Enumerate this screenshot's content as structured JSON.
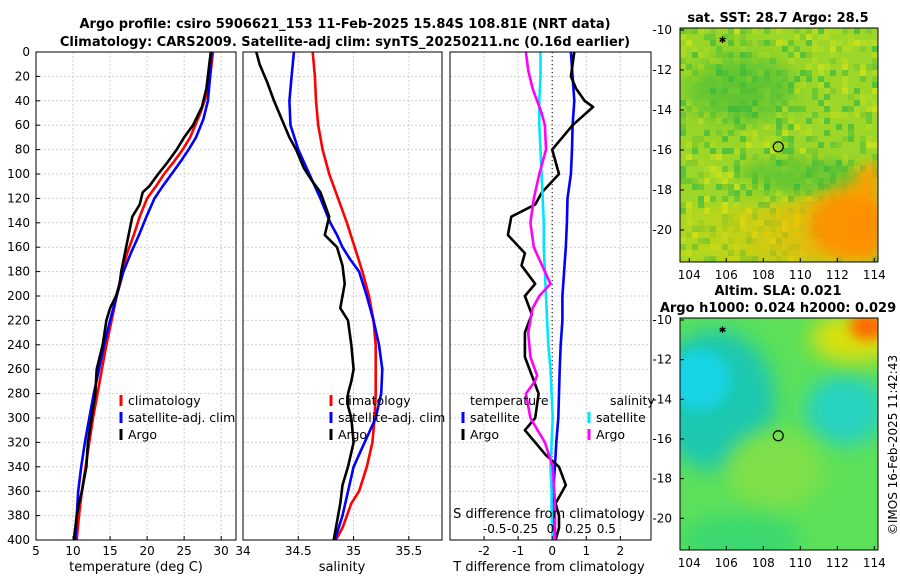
{
  "title": {
    "line1": "Argo profile: csiro 5906621_153 11-Feb-2025 15.84S 108.81E (NRT data)",
    "line2": "Climatology: CARS2009. Satellite-adj clim: synTS_20250211.nc (0.16d earlier)"
  },
  "colors": {
    "climatology": "#ff0000",
    "satellite": "#0000ff",
    "argo": "#000000",
    "s_satellite": "#00e5ff",
    "s_argo": "#ff00ff",
    "grid": "#cccccc"
  },
  "chart_data": [
    {
      "id": "temperature",
      "type": "line",
      "xlabel": "temperature (deg C)",
      "ylabel": "",
      "xlim": [
        5,
        32
      ],
      "ylim": [
        400,
        0
      ],
      "xticks": [
        5,
        10,
        15,
        20,
        25,
        30
      ],
      "yticks": [
        0,
        20,
        40,
        60,
        80,
        100,
        120,
        140,
        160,
        180,
        200,
        220,
        240,
        260,
        280,
        300,
        320,
        340,
        360,
        380,
        400
      ],
      "legend": [
        "climatology",
        "satellite-adj. clim",
        "Argo"
      ],
      "series": [
        {
          "name": "climatology",
          "color": "#ff0000",
          "x": [
            28.9,
            28.7,
            28.3,
            27.2,
            25.8,
            24.8,
            23.6,
            22.3,
            21.2,
            20.0,
            19.0,
            18.2,
            17.3,
            16.6,
            15.9,
            15.2,
            14.5,
            13.9,
            13.3,
            12.7,
            12.2,
            11.7,
            11.2,
            10.8,
            10.5
          ],
          "y": [
            0,
            10,
            30,
            50,
            70,
            80,
            90,
            100,
            110,
            120,
            135,
            150,
            165,
            180,
            200,
            220,
            240,
            260,
            280,
            300,
            320,
            340,
            360,
            380,
            400
          ]
        },
        {
          "name": "satellite-adj. clim",
          "color": "#0000ff",
          "x": [
            28.7,
            28.6,
            28.5,
            28.2,
            27.6,
            26.6,
            25.6,
            24.5,
            23.3,
            22.1,
            21.0,
            19.9,
            18.9,
            17.8,
            16.8,
            15.9,
            15.0,
            14.2,
            13.5,
            12.8,
            12.2,
            11.6,
            11.1,
            10.7,
            10.3
          ],
          "y": [
            0,
            10,
            20,
            40,
            55,
            70,
            80,
            90,
            100,
            110,
            120,
            135,
            150,
            165,
            180,
            200,
            220,
            240,
            260,
            280,
            300,
            320,
            340,
            360,
            400
          ]
        },
        {
          "name": "Argo",
          "color": "#000000",
          "x": [
            28.6,
            28.4,
            28.0,
            27.4,
            26.2,
            25.0,
            24.0,
            22.8,
            21.5,
            20.3,
            19.4,
            19.0,
            18.0,
            17.5,
            17.0,
            16.5,
            16.3,
            15.8,
            15.0,
            14.5,
            14.0,
            13.2,
            13.0,
            12.5,
            12.0,
            11.8,
            11.5,
            11.2,
            10.8,
            10.5,
            10.3,
            10.1
          ],
          "y": [
            0,
            10,
            30,
            45,
            60,
            70,
            80,
            90,
            100,
            110,
            115,
            125,
            135,
            150,
            165,
            180,
            190,
            200,
            210,
            220,
            240,
            260,
            280,
            300,
            320,
            340,
            350,
            360,
            370,
            380,
            390,
            400
          ]
        }
      ]
    },
    {
      "id": "salinity",
      "type": "line",
      "xlabel": "salinity",
      "ylabel": "",
      "xlim": [
        34,
        35.8
      ],
      "ylim": [
        400,
        0
      ],
      "xticks": [
        34,
        34.5,
        35,
        35.5
      ],
      "legend": [
        "climatology",
        "satellite-adj. clim",
        "Argo"
      ],
      "series": [
        {
          "name": "climatology",
          "color": "#ff0000",
          "x": [
            34.63,
            34.65,
            34.66,
            34.68,
            34.72,
            34.78,
            34.86,
            34.94,
            35.01,
            35.08,
            35.14,
            35.18,
            35.2,
            35.2,
            35.2,
            35.19,
            35.17,
            35.12,
            35.05,
            34.98,
            34.9,
            34.84
          ],
          "y": [
            0,
            20,
            40,
            60,
            80,
            100,
            120,
            140,
            160,
            180,
            200,
            220,
            240,
            260,
            280,
            300,
            320,
            340,
            360,
            370,
            390,
            400
          ]
        },
        {
          "name": "satellite-adj. clim",
          "color": "#0000ff",
          "x": [
            34.46,
            34.44,
            34.42,
            34.43,
            34.5,
            34.6,
            34.7,
            34.79,
            34.85,
            34.9,
            34.97,
            35.05,
            35.12,
            35.18,
            35.23,
            35.26,
            35.25,
            35.2,
            35.1,
            35.0,
            34.9,
            34.83
          ],
          "y": [
            0,
            20,
            40,
            60,
            80,
            100,
            120,
            140,
            150,
            160,
            170,
            180,
            200,
            220,
            240,
            260,
            280,
            300,
            320,
            340,
            380,
            400
          ]
        },
        {
          "name": "Argo",
          "color": "#000000",
          "x": [
            34.12,
            34.15,
            34.22,
            34.28,
            34.35,
            34.42,
            34.48,
            34.55,
            34.62,
            34.7,
            34.74,
            34.78,
            34.74,
            34.85,
            34.9,
            34.92,
            34.9,
            34.88,
            34.95,
            34.98,
            35.0,
            34.98,
            34.95,
            34.95,
            34.98,
            35.0,
            34.95,
            34.9,
            34.88,
            34.86,
            34.84,
            34.82
          ],
          "y": [
            0,
            10,
            25,
            40,
            55,
            70,
            80,
            95,
            105,
            115,
            125,
            135,
            150,
            160,
            175,
            190,
            200,
            210,
            220,
            240,
            260,
            270,
            280,
            290,
            300,
            320,
            340,
            355,
            370,
            380,
            390,
            400
          ]
        }
      ]
    },
    {
      "id": "difference",
      "type": "line",
      "xlabel": "T difference from climatology",
      "x2label": "S difference from climatology",
      "xlim": [
        -3,
        2.9
      ],
      "x2lim": [
        -0.9,
        0.9
      ],
      "ylim": [
        400,
        0
      ],
      "xticks": [
        -2,
        -1,
        0,
        1,
        2
      ],
      "x2ticks": [
        "-0.5",
        "-0.25",
        "0",
        "0.25",
        "0.5"
      ],
      "x2tickvalues": [
        -0.5,
        -0.25,
        0,
        0.25,
        0.5
      ],
      "legend_temperature_header": "temperature",
      "legend_salinity_header": "salinity",
      "legend": [
        "satellite",
        "Argo",
        "satellite",
        "Argo"
      ],
      "series": [
        {
          "name": "temperature satellite",
          "axis": "T",
          "color": "#0000ff",
          "x": [
            0.55,
            0.6,
            0.65,
            0.6,
            0.58,
            0.55,
            0.45,
            0.43,
            0.4,
            0.35,
            0.3,
            0.3,
            0.25,
            0.22,
            0.2,
            0.18,
            0.12,
            0.08,
            0.03,
            0,
            0,
            0.02,
            0.03
          ],
          "y": [
            0,
            20,
            40,
            60,
            80,
            100,
            120,
            140,
            160,
            180,
            200,
            220,
            240,
            260,
            280,
            300,
            320,
            340,
            360,
            370,
            380,
            390,
            400
          ]
        },
        {
          "name": "temperature Argo",
          "axis": "T",
          "color": "#000000",
          "x": [
            0.65,
            0.55,
            0.7,
            0.95,
            1.2,
            0.6,
            0.0,
            0.2,
            -0.3,
            -0.5,
            -1.2,
            -1.3,
            -0.8,
            -0.9,
            -0.5,
            -0.8,
            -0.6,
            -0.8,
            -0.8,
            -0.6,
            -0.4,
            -0.5,
            -0.8,
            -0.5,
            -0.2,
            0.2,
            0.4,
            0.1,
            0.2,
            0.2,
            0.1
          ],
          "y": [
            0,
            20,
            30,
            40,
            45,
            60,
            80,
            100,
            115,
            125,
            135,
            150,
            165,
            175,
            190,
            200,
            215,
            230,
            250,
            265,
            280,
            300,
            310,
            320,
            330,
            340,
            355,
            370,
            380,
            390,
            400
          ]
        },
        {
          "name": "salinity satellite",
          "axis": "S",
          "color": "#00e5ff",
          "x": [
            -0.09,
            -0.09,
            -0.1,
            -0.1,
            -0.09,
            -0.08,
            -0.07,
            -0.06,
            -0.06,
            -0.05,
            -0.04,
            -0.03,
            -0.02,
            0.0,
            0.01,
            0.02,
            0.01,
            0.0,
            0.01,
            0.01,
            0.02
          ],
          "y": [
            0,
            20,
            40,
            60,
            80,
            100,
            120,
            140,
            160,
            180,
            200,
            220,
            240,
            260,
            280,
            300,
            320,
            340,
            360,
            380,
            400
          ]
        },
        {
          "name": "salinity Argo",
          "axis": "S",
          "color": "#ff00ff",
          "x": [
            -0.22,
            -0.2,
            -0.16,
            -0.08,
            -0.05,
            -0.04,
            -0.1,
            -0.15,
            -0.18,
            -0.15,
            -0.1,
            -0.05,
            0.0,
            -0.1,
            -0.16,
            -0.2,
            -0.18,
            -0.12,
            -0.14,
            -0.22,
            -0.18,
            -0.05,
            0.02,
            0.04,
            0.04
          ],
          "y": [
            0,
            15,
            30,
            50,
            60,
            80,
            100,
            120,
            140,
            160,
            170,
            180,
            190,
            200,
            210,
            230,
            250,
            265,
            270,
            280,
            300,
            320,
            340,
            370,
            400
          ]
        }
      ]
    },
    {
      "id": "sst_map",
      "type": "heatmap",
      "title": "sat. SST: 28.7 Argo: 28.5",
      "xticks": [
        104,
        106,
        108,
        110,
        112,
        114
      ],
      "yticks": [
        -10,
        -12,
        -14,
        -16,
        -18,
        -20
      ],
      "xlim": [
        103.5,
        114.2
      ],
      "ylim": [
        -21.6,
        -9.9
      ],
      "float_position": {
        "lon": 108.81,
        "lat": -15.84
      },
      "marker_position": {
        "lon": 105.8,
        "lat": -10.5
      }
    },
    {
      "id": "sla_map",
      "type": "heatmap",
      "title_line1": "Altim. SLA: 0.021",
      "title_line2": "Argo h1000: 0.024 h2000: 0.029",
      "xticks": [
        104,
        106,
        108,
        110,
        112,
        114
      ],
      "yticks": [
        -10,
        -12,
        -14,
        -16,
        -18,
        -20
      ],
      "xlim": [
        103.5,
        114.2
      ],
      "ylim": [
        -21.6,
        -9.9
      ],
      "float_position": {
        "lon": 108.81,
        "lat": -15.84
      },
      "marker_position": {
        "lon": 105.8,
        "lat": -10.5
      }
    }
  ],
  "credit": "©IMOS 16-Feb-2025 11:42:43"
}
